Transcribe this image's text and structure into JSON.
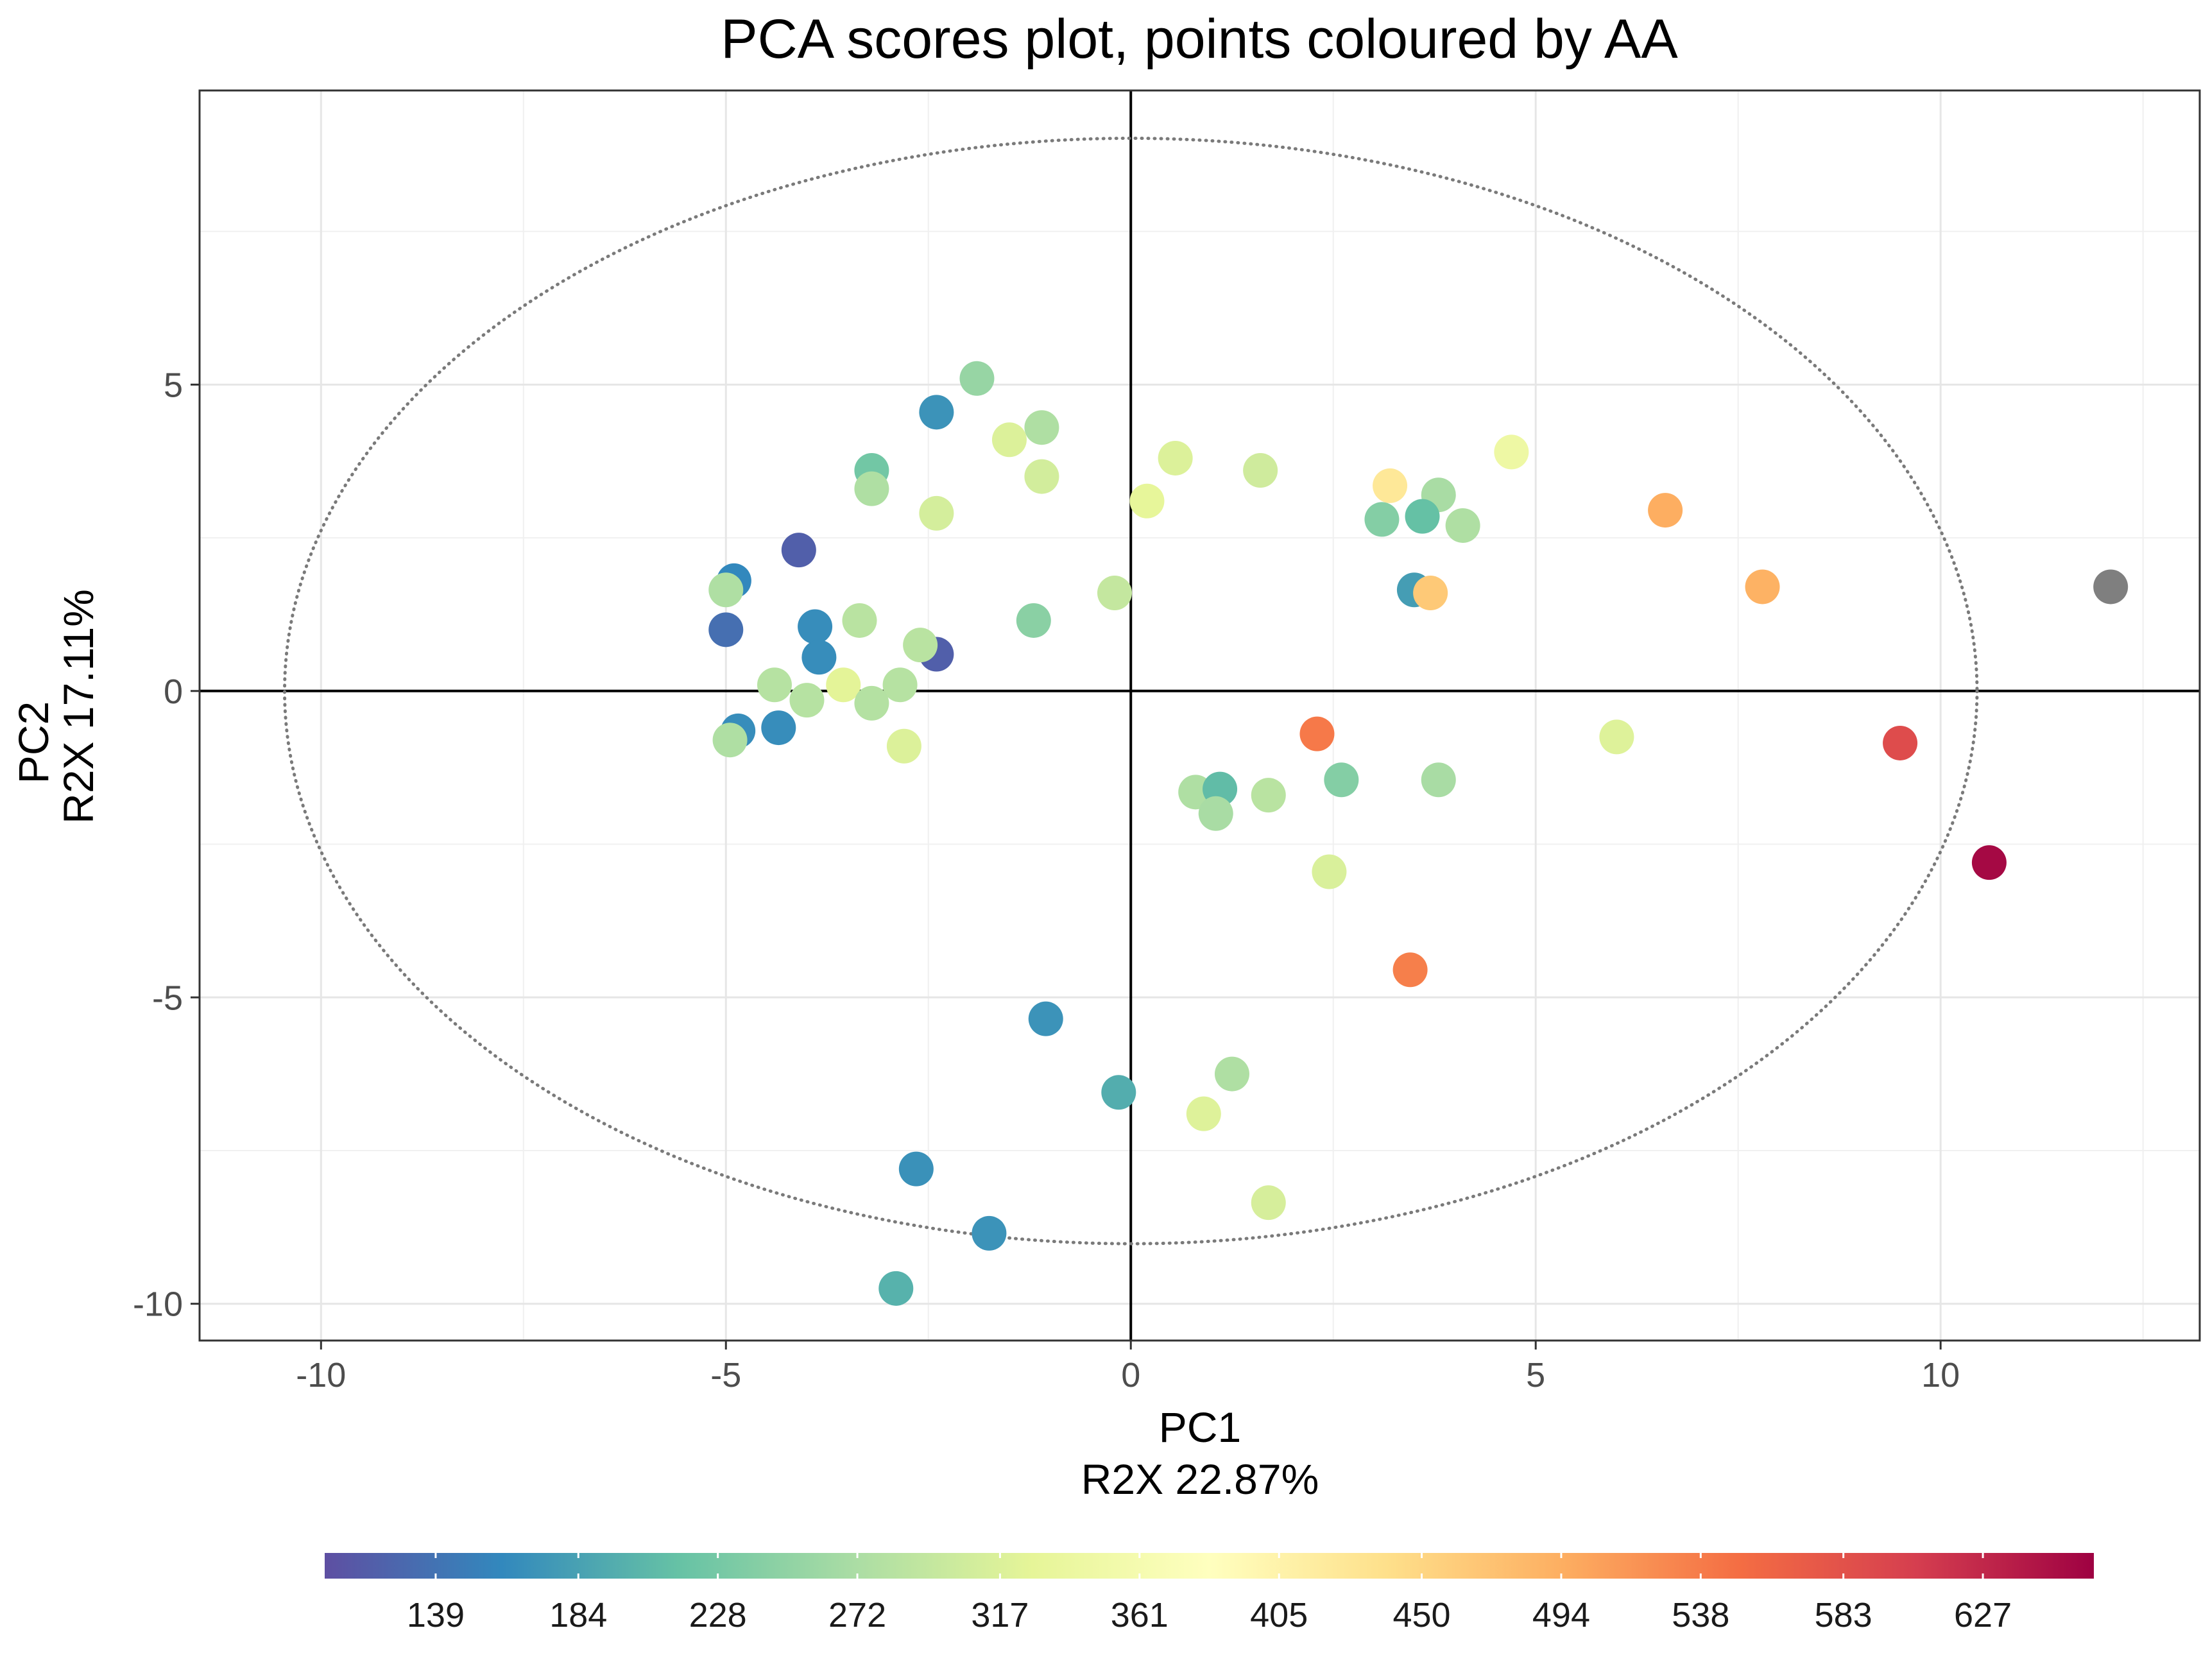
{
  "chart_data": {
    "type": "scatter",
    "title": "PCA scores plot, points coloured by AA",
    "xlabel": [
      "PC1",
      "R2X 22.87%"
    ],
    "ylabel": [
      "PC2",
      "R2X 17.11%"
    ],
    "xlim": [
      -11.5,
      13.2
    ],
    "ylim": [
      -10.6,
      9.8
    ],
    "xticks": [
      -10,
      -5,
      0,
      5,
      10
    ],
    "xtick_labels": [
      "-10",
      "-5",
      "0",
      "5",
      "10"
    ],
    "yticks": [
      -10,
      -5,
      0,
      5
    ],
    "ytick_labels": [
      "-10",
      "-5",
      "0",
      "5"
    ],
    "grid": true,
    "reference_lines": {
      "x": 0,
      "y": 0
    },
    "ellipse": {
      "center": [
        0,
        0
      ],
      "semi_axis_x": 10.45,
      "semi_axis_y": 9.02,
      "style": "dotted"
    },
    "colorbar": {
      "variable": "AA",
      "min": 104,
      "max": 662,
      "ticks": [
        139,
        184,
        228,
        272,
        317,
        361,
        405,
        450,
        494,
        538,
        583,
        627
      ],
      "tick_labels": [
        "139",
        "184",
        "228",
        "272",
        "317",
        "361",
        "405",
        "450",
        "494",
        "538",
        "583",
        "627"
      ],
      "palette": [
        "#5E4FA2",
        "#3288BD",
        "#66C2A5",
        "#ABDDA4",
        "#E6F598",
        "#FFFFBF",
        "#FEE08B",
        "#FDAE61",
        "#F46D43",
        "#D53E4F",
        "#9E0142"
      ],
      "missing_color": "#7F7F7F",
      "position": "bottom"
    },
    "points": [
      {
        "x": -1.9,
        "y": 5.1,
        "aa": 255
      },
      {
        "x": -2.4,
        "y": 4.55,
        "aa": 170
      },
      {
        "x": -1.1,
        "y": 4.3,
        "aa": 275
      },
      {
        "x": -1.5,
        "y": 4.1,
        "aa": 318
      },
      {
        "x": -1.1,
        "y": 3.5,
        "aa": 308
      },
      {
        "x": -3.2,
        "y": 3.6,
        "aa": 225
      },
      {
        "x": -3.2,
        "y": 3.3,
        "aa": 275
      },
      {
        "x": -2.4,
        "y": 2.9,
        "aa": 310
      },
      {
        "x": -4.1,
        "y": 2.3,
        "aa": 120
      },
      {
        "x": -4.9,
        "y": 1.8,
        "aa": 160
      },
      {
        "x": -5.0,
        "y": 1.65,
        "aa": 275
      },
      {
        "x": -5.0,
        "y": 1.0,
        "aa": 135
      },
      {
        "x": -3.9,
        "y": 1.05,
        "aa": 165
      },
      {
        "x": -3.35,
        "y": 1.15,
        "aa": 285
      },
      {
        "x": -3.85,
        "y": 0.55,
        "aa": 165
      },
      {
        "x": -2.4,
        "y": 0.6,
        "aa": 120
      },
      {
        "x": -2.6,
        "y": 0.75,
        "aa": 285
      },
      {
        "x": -1.2,
        "y": 1.15,
        "aa": 245
      },
      {
        "x": -0.2,
        "y": 1.6,
        "aa": 295
      },
      {
        "x": -4.4,
        "y": 0.1,
        "aa": 282
      },
      {
        "x": -4.0,
        "y": -0.15,
        "aa": 282
      },
      {
        "x": -3.55,
        "y": 0.1,
        "aa": 325
      },
      {
        "x": -2.85,
        "y": 0.1,
        "aa": 282
      },
      {
        "x": -3.2,
        "y": -0.2,
        "aa": 280
      },
      {
        "x": -4.85,
        "y": -0.65,
        "aa": 165
      },
      {
        "x": -4.95,
        "y": -0.8,
        "aa": 275
      },
      {
        "x": -4.35,
        "y": -0.6,
        "aa": 165
      },
      {
        "x": -2.8,
        "y": -0.9,
        "aa": 318
      },
      {
        "x": 0.55,
        "y": 3.8,
        "aa": 318
      },
      {
        "x": 0.2,
        "y": 3.1,
        "aa": 330
      },
      {
        "x": 1.6,
        "y": 3.6,
        "aa": 305
      },
      {
        "x": 3.2,
        "y": 3.35,
        "aa": 425
      },
      {
        "x": 3.8,
        "y": 3.2,
        "aa": 270
      },
      {
        "x": 3.1,
        "y": 2.8,
        "aa": 240
      },
      {
        "x": 3.6,
        "y": 2.85,
        "aa": 215
      },
      {
        "x": 4.1,
        "y": 2.7,
        "aa": 275
      },
      {
        "x": 4.7,
        "y": 3.9,
        "aa": 345
      },
      {
        "x": 3.5,
        "y": 1.65,
        "aa": 180
      },
      {
        "x": 3.7,
        "y": 1.6,
        "aa": 465
      },
      {
        "x": 6.6,
        "y": 2.95,
        "aa": 495
      },
      {
        "x": 7.8,
        "y": 1.7,
        "aa": 490
      },
      {
        "x": 2.3,
        "y": -0.7,
        "aa": 540
      },
      {
        "x": 6.0,
        "y": -0.75,
        "aa": 320
      },
      {
        "x": 9.5,
        "y": -0.85,
        "aa": 590
      },
      {
        "x": 10.6,
        "y": -2.8,
        "aa": 655
      },
      {
        "x": 0.8,
        "y": -1.65,
        "aa": 275
      },
      {
        "x": 1.1,
        "y": -1.6,
        "aa": 210
      },
      {
        "x": 1.05,
        "y": -2.0,
        "aa": 270
      },
      {
        "x": 1.7,
        "y": -1.7,
        "aa": 285
      },
      {
        "x": 2.6,
        "y": -1.45,
        "aa": 240
      },
      {
        "x": 3.8,
        "y": -1.45,
        "aa": 270
      },
      {
        "x": 2.45,
        "y": -2.95,
        "aa": 315
      },
      {
        "x": 3.45,
        "y": -4.55,
        "aa": 535
      },
      {
        "x": -1.05,
        "y": -5.35,
        "aa": 170
      },
      {
        "x": -0.15,
        "y": -6.55,
        "aa": 195
      },
      {
        "x": 1.25,
        "y": -6.25,
        "aa": 275
      },
      {
        "x": 0.9,
        "y": -6.9,
        "aa": 320
      },
      {
        "x": -2.65,
        "y": -7.8,
        "aa": 168
      },
      {
        "x": -1.75,
        "y": -8.85,
        "aa": 170
      },
      {
        "x": 1.7,
        "y": -8.35,
        "aa": 312
      },
      {
        "x": -2.9,
        "y": -9.75,
        "aa": 200
      },
      {
        "x": 12.1,
        "y": 1.7,
        "aa": null
      }
    ]
  }
}
